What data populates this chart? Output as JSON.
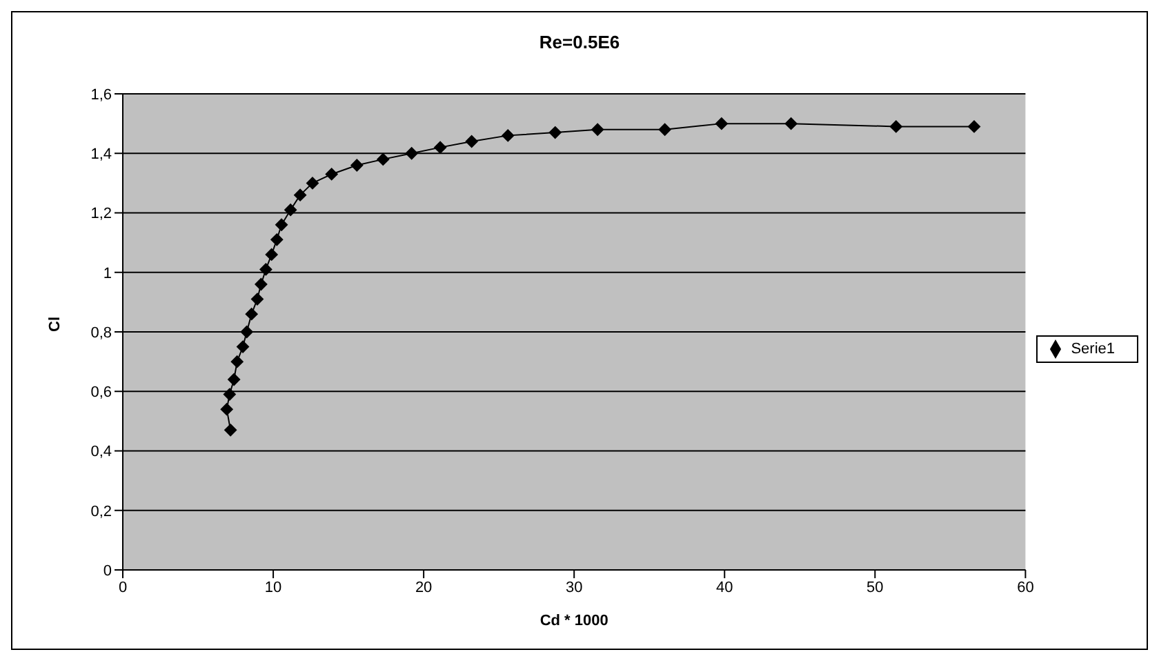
{
  "chart_data": {
    "type": "line",
    "title": "Re=0.5E6",
    "xlabel": "Cd * 1000",
    "ylabel": "Cl",
    "xlim": [
      0,
      60
    ],
    "xticks": [
      0,
      10,
      20,
      30,
      40,
      50,
      60
    ],
    "ylim": [
      0,
      1.6
    ],
    "yticks": [
      {
        "value": 0,
        "label": "0"
      },
      {
        "value": 0.2,
        "label": "0,2"
      },
      {
        "value": 0.4,
        "label": "0,4"
      },
      {
        "value": 0.6,
        "label": "0,6"
      },
      {
        "value": 0.8,
        "label": "0,8"
      },
      {
        "value": 1,
        "label": "1"
      },
      {
        "value": 1.2,
        "label": "1,2"
      },
      {
        "value": 1.4,
        "label": "1,4"
      },
      {
        "value": 1.6,
        "label": "1,6"
      }
    ],
    "grid": "y",
    "legend": "right",
    "marker": "diamond",
    "line_style": "solid",
    "series": [
      {
        "name": "Serie1",
        "color": "#000000",
        "x": [
          7.16,
          6.91,
          7.1,
          7.39,
          7.6,
          7.98,
          8.24,
          8.56,
          8.94,
          9.19,
          9.51,
          9.89,
          10.24,
          10.55,
          11.15,
          11.79,
          12.61,
          13.88,
          15.56,
          17.3,
          19.2,
          21.1,
          23.19,
          25.6,
          28.74,
          31.56,
          36.03,
          39.8,
          44.42,
          51.4,
          56.59
        ],
        "values": [
          0.47,
          0.54,
          0.59,
          0.64,
          0.7,
          0.75,
          0.8,
          0.86,
          0.91,
          0.96,
          1.01,
          1.06,
          1.11,
          1.16,
          1.21,
          1.26,
          1.3,
          1.33,
          1.36,
          1.38,
          1.4,
          1.42,
          1.44,
          1.46,
          1.47,
          1.48,
          1.48,
          1.5,
          1.5,
          1.49,
          1.49
        ]
      }
    ]
  }
}
